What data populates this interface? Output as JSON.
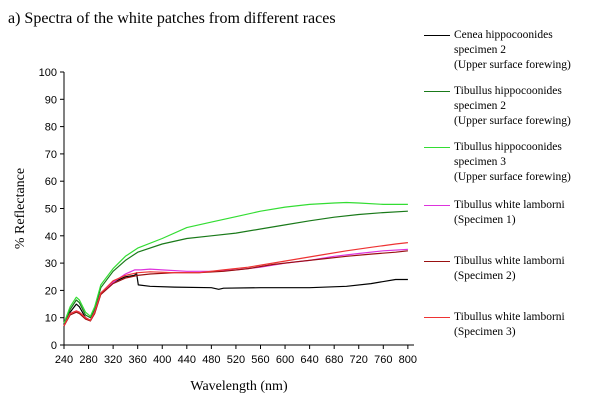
{
  "chart_data": {
    "type": "line",
    "title": "a)  Spectra of the white patches from different races",
    "xlabel": "Wavelength (nm)",
    "ylabel": "% Reflectance",
    "xlim": [
      240,
      810
    ],
    "ylim": [
      0,
      100
    ],
    "xticks": [
      240,
      280,
      320,
      360,
      400,
      440,
      480,
      520,
      560,
      600,
      640,
      680,
      720,
      760,
      800
    ],
    "yticks": [
      0,
      10,
      20,
      30,
      40,
      50,
      60,
      70,
      80,
      90,
      100
    ],
    "grid": false,
    "legend_position": "right",
    "series": [
      {
        "name_lines": [
          "Cenea hippocoonides",
          "specimen 2",
          "(Upper surface forewing)"
        ],
        "color": "#000000",
        "points": [
          [
            240,
            7
          ],
          [
            250,
            12
          ],
          [
            260,
            15
          ],
          [
            265,
            14
          ],
          [
            275,
            10
          ],
          [
            283,
            9
          ],
          [
            290,
            12
          ],
          [
            300,
            19
          ],
          [
            320,
            23
          ],
          [
            340,
            25
          ],
          [
            355,
            25.5
          ],
          [
            358,
            26.5
          ],
          [
            361,
            22
          ],
          [
            380,
            21.5
          ],
          [
            420,
            21.2
          ],
          [
            480,
            21
          ],
          [
            492,
            20.4
          ],
          [
            500,
            20.8
          ],
          [
            560,
            21
          ],
          [
            640,
            21
          ],
          [
            700,
            21.5
          ],
          [
            740,
            22.5
          ],
          [
            780,
            24
          ],
          [
            800,
            24
          ]
        ]
      },
      {
        "name_lines": [
          "Tibullus hippocoonides",
          "specimen 2",
          "(Upper surface forewing)"
        ],
        "color": "#1a7a1a",
        "points": [
          [
            240,
            7
          ],
          [
            250,
            13
          ],
          [
            260,
            16.5
          ],
          [
            265,
            15.5
          ],
          [
            275,
            11
          ],
          [
            283,
            10
          ],
          [
            290,
            13
          ],
          [
            300,
            21
          ],
          [
            320,
            27
          ],
          [
            340,
            31
          ],
          [
            360,
            34
          ],
          [
            400,
            37
          ],
          [
            440,
            39
          ],
          [
            480,
            40
          ],
          [
            520,
            41
          ],
          [
            560,
            42.5
          ],
          [
            600,
            44
          ],
          [
            640,
            45.5
          ],
          [
            680,
            46.8
          ],
          [
            720,
            47.8
          ],
          [
            760,
            48.5
          ],
          [
            800,
            49
          ]
        ]
      },
      {
        "name_lines": [
          "Tibullus hippocoonides",
          "specimen 3",
          "(Upper surface forewing)"
        ],
        "color": "#33dd33",
        "points": [
          [
            240,
            8
          ],
          [
            250,
            14
          ],
          [
            260,
            17.5
          ],
          [
            265,
            16.5
          ],
          [
            275,
            12
          ],
          [
            283,
            10.5
          ],
          [
            290,
            14
          ],
          [
            300,
            22
          ],
          [
            320,
            28
          ],
          [
            340,
            32.5
          ],
          [
            360,
            35.5
          ],
          [
            400,
            39
          ],
          [
            440,
            43
          ],
          [
            480,
            45
          ],
          [
            520,
            47
          ],
          [
            560,
            49
          ],
          [
            600,
            50.5
          ],
          [
            640,
            51.5
          ],
          [
            680,
            52
          ],
          [
            700,
            52.2
          ],
          [
            720,
            52
          ],
          [
            760,
            51.5
          ],
          [
            800,
            51.5
          ]
        ]
      },
      {
        "name_lines": [
          "Tibullus white lamborni",
          "(Specimen 1)"
        ],
        "color": "#dd33dd",
        "points": [
          [
            240,
            7
          ],
          [
            250,
            11.5
          ],
          [
            260,
            12.5
          ],
          [
            265,
            12
          ],
          [
            275,
            10
          ],
          [
            283,
            9
          ],
          [
            290,
            12
          ],
          [
            300,
            19
          ],
          [
            320,
            23
          ],
          [
            340,
            26
          ],
          [
            355,
            27.5
          ],
          [
            365,
            27.5
          ],
          [
            380,
            27.8
          ],
          [
            400,
            27.5
          ],
          [
            440,
            27
          ],
          [
            480,
            27
          ],
          [
            520,
            27.5
          ],
          [
            560,
            28.5
          ],
          [
            600,
            30
          ],
          [
            640,
            31
          ],
          [
            680,
            32.5
          ],
          [
            720,
            33.5
          ],
          [
            760,
            34.5
          ],
          [
            800,
            35
          ]
        ]
      },
      {
        "name_lines": [
          "Tibullus white lamborni",
          "(Specimen 2)"
        ],
        "color": "#991111",
        "points": [
          [
            240,
            7
          ],
          [
            250,
            11
          ],
          [
            260,
            12
          ],
          [
            265,
            11.5
          ],
          [
            275,
            9.5
          ],
          [
            283,
            8.8
          ],
          [
            290,
            11.5
          ],
          [
            300,
            18.5
          ],
          [
            320,
            22.5
          ],
          [
            340,
            24.5
          ],
          [
            360,
            25.5
          ],
          [
            380,
            26
          ],
          [
            420,
            26.5
          ],
          [
            460,
            26.5
          ],
          [
            500,
            27
          ],
          [
            540,
            28
          ],
          [
            580,
            29.5
          ],
          [
            620,
            30.5
          ],
          [
            660,
            31.5
          ],
          [
            700,
            32.5
          ],
          [
            740,
            33.3
          ],
          [
            780,
            34
          ],
          [
            800,
            34.5
          ]
        ]
      },
      {
        "name_lines": [
          "Tibullus white lamborni",
          "(Specimen 3)"
        ],
        "color": "#ee3333",
        "points": [
          [
            240,
            7
          ],
          [
            250,
            11.5
          ],
          [
            260,
            12.5
          ],
          [
            265,
            12
          ],
          [
            275,
            10
          ],
          [
            283,
            9
          ],
          [
            290,
            12
          ],
          [
            300,
            19
          ],
          [
            320,
            23.5
          ],
          [
            340,
            25.5
          ],
          [
            360,
            26.5
          ],
          [
            380,
            26.8
          ],
          [
            420,
            26.5
          ],
          [
            460,
            26.5
          ],
          [
            500,
            27.5
          ],
          [
            540,
            28.5
          ],
          [
            580,
            30
          ],
          [
            620,
            31.5
          ],
          [
            660,
            33
          ],
          [
            700,
            34.5
          ],
          [
            740,
            35.8
          ],
          [
            780,
            37
          ],
          [
            800,
            37.5
          ]
        ]
      }
    ]
  }
}
